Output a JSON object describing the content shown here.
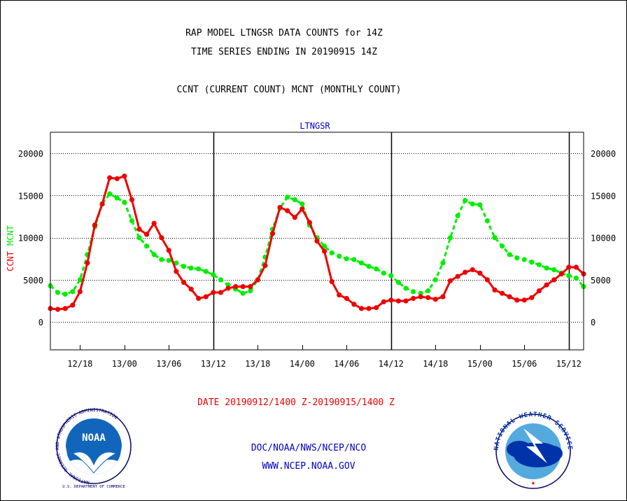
{
  "header": {
    "line1": "RAP MODEL LTNGSR DATA COUNTS for 14Z",
    "line2": "TIME SERIES ENDING IN 20190915 14Z",
    "line3": "CCNT (CURRENT COUNT) MCNT (MONTHLY COUNT)"
  },
  "footer": {
    "date_range": "DATE 20190912/1400 Z-20190915/1400 Z",
    "org": "DOC/NOAA/NWS/NCEP/NCO",
    "url": "WWW.NCEP.NOAA.GOV"
  },
  "logos": {
    "noaa": {
      "center": "NOAA",
      "ring": "NATIONAL OCEANIC AND ATMOSPHERIC ADMINISTRATION",
      "bottom": "U.S. DEPARTMENT OF COMMERCE"
    },
    "nws": {
      "ring": "NATIONAL WEATHER SERVICE"
    }
  },
  "colors": {
    "ccnt": "#ee0000",
    "mcnt": "#00ee00",
    "title": "#0000cc",
    "text": "#000000"
  },
  "chart_data": {
    "type": "line",
    "title": "LTNGSR",
    "ylabel_left": [
      "CCNT",
      "MCNT"
    ],
    "ylim": [
      -3300,
      22500
    ],
    "yticks": [
      0,
      5000,
      10000,
      15000,
      20000
    ],
    "ytick_labels": [
      "0",
      "5000",
      "10000",
      "15000",
      "20000"
    ],
    "xlim": [
      0,
      72
    ],
    "xticks": [
      4,
      10,
      16,
      22,
      28,
      34,
      40,
      46,
      52,
      58,
      64,
      70
    ],
    "xtick_labels": [
      "12/18",
      "13/00",
      "13/06",
      "13/12",
      "13/18",
      "14/00",
      "14/06",
      "14/12",
      "14/18",
      "15/00",
      "15/06",
      "15/12"
    ],
    "day_lines": [
      22,
      46,
      70
    ],
    "grid": "horizontal-dotted",
    "series": [
      {
        "name": "CCNT",
        "color": "#ee0000",
        "x": [
          0,
          1,
          2,
          3,
          4,
          5,
          6,
          7,
          8,
          9,
          10,
          11,
          12,
          13,
          14,
          15,
          16,
          17,
          18,
          19,
          20,
          21,
          22,
          23,
          24,
          25,
          26,
          27,
          28,
          29,
          30,
          31,
          32,
          33,
          34,
          35,
          36,
          37,
          38,
          39,
          40,
          41,
          42,
          43,
          44,
          45,
          46,
          47,
          48,
          49,
          50,
          51,
          52,
          53,
          54,
          55,
          56,
          57,
          58,
          59,
          60,
          61,
          62,
          63,
          64,
          65,
          66,
          67,
          68,
          69,
          70,
          71,
          72
        ],
        "values": [
          1600,
          1500,
          1600,
          2000,
          3600,
          7000,
          11500,
          14000,
          17100,
          17000,
          17300,
          14500,
          11000,
          10400,
          11700,
          10000,
          8500,
          6000,
          4700,
          3900,
          2800,
          3000,
          3500,
          3500,
          4000,
          4200,
          4200,
          4200,
          5000,
          6700,
          10500,
          13600,
          13200,
          12400,
          13400,
          11800,
          9600,
          8400,
          4800,
          3200,
          2800,
          2100,
          1600,
          1600,
          1700,
          2400,
          2600,
          2500,
          2500,
          2800,
          3000,
          2900,
          2700,
          3000,
          4900,
          5400,
          5900,
          6200,
          5800,
          5000,
          3800,
          3400,
          3000,
          2600,
          2600,
          2900,
          3700,
          4400,
          5000,
          5700,
          6500,
          6500,
          5700
        ]
      },
      {
        "name": "MCNT",
        "color": "#00ee00",
        "x": [
          0,
          1,
          2,
          3,
          4,
          5,
          6,
          7,
          8,
          9,
          10,
          11,
          12,
          13,
          14,
          15,
          16,
          17,
          18,
          19,
          20,
          21,
          22,
          23,
          24,
          25,
          26,
          27,
          28,
          29,
          30,
          31,
          32,
          33,
          34,
          35,
          36,
          37,
          38,
          39,
          40,
          41,
          42,
          43,
          44,
          45,
          46,
          47,
          48,
          49,
          50,
          51,
          52,
          53,
          54,
          55,
          56,
          57,
          58,
          59,
          60,
          61,
          62,
          63,
          64,
          65,
          66,
          67,
          68,
          69,
          70,
          71,
          72
        ],
        "values": [
          4300,
          3500,
          3300,
          3600,
          5000,
          8000,
          11300,
          14000,
          15200,
          14700,
          14200,
          12000,
          10000,
          9000,
          8000,
          7400,
          7300,
          7000,
          6600,
          6400,
          6300,
          6000,
          5600,
          5000,
          4400,
          3900,
          3400,
          3700,
          5000,
          7700,
          11000,
          13500,
          14800,
          14500,
          14000,
          11500,
          10000,
          9000,
          8200,
          7800,
          7500,
          7400,
          7000,
          6600,
          6300,
          5800,
          5500,
          4700,
          4000,
          3600,
          3400,
          3700,
          5000,
          7000,
          10000,
          12600,
          14400,
          14000,
          13900,
          12000,
          10000,
          9000,
          8000,
          7600,
          7400,
          7100,
          6800,
          6400,
          6200,
          5800,
          5500,
          5200,
          4200
        ]
      }
    ]
  }
}
